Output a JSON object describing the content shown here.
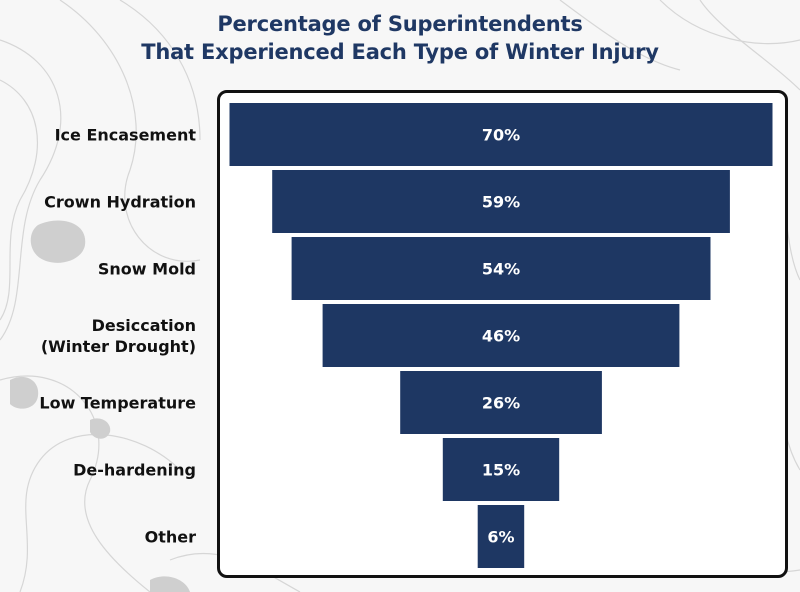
{
  "colors": {
    "bar": "#1e3763",
    "title": "#1f3864",
    "frame": "#111111",
    "background": "#f7f7f7"
  },
  "chart_data": {
    "type": "bar",
    "orientation": "horizontal-funnel",
    "title": "Percentage of Superintendents That Experienced Each Type of Winter Injury",
    "title_lines": [
      "Percentage of Superintendents",
      "That Experienced Each Type of Winter Injury"
    ],
    "categories": [
      [
        "Ice Encasement"
      ],
      [
        "Crown Hydration"
      ],
      [
        "Snow Mold"
      ],
      [
        "Desiccation",
        "(Winter Drought)"
      ],
      [
        "Low Temperature"
      ],
      [
        "De-hardening"
      ],
      [
        "Other"
      ]
    ],
    "values": [
      70,
      59,
      54,
      46,
      26,
      15,
      6
    ],
    "value_labels": [
      "70%",
      "59%",
      "54%",
      "46%",
      "26%",
      "15%",
      "6%"
    ],
    "unit": "%",
    "xlim": [
      0,
      70
    ],
    "xlabel": "",
    "ylabel": "",
    "grid": false,
    "legend": "none"
  }
}
